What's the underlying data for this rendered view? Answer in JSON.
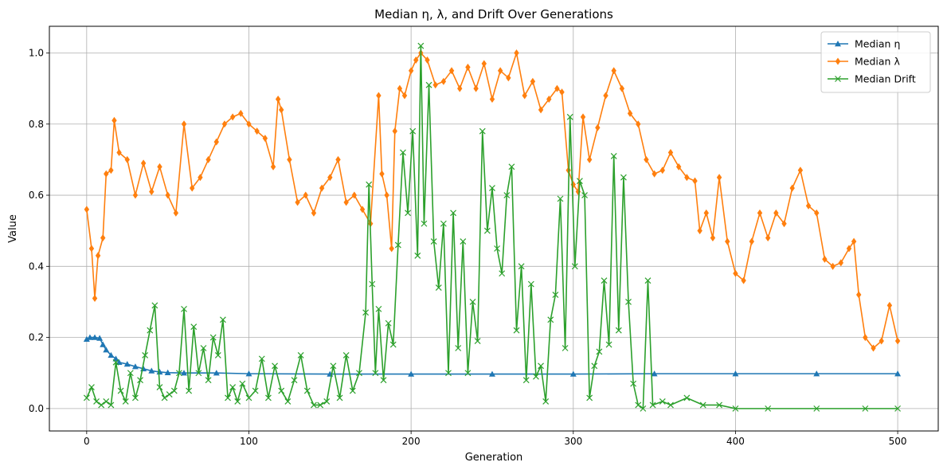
{
  "chart_data": {
    "type": "line",
    "title": "Median η, λ, and Drift Over Generations",
    "xlabel": "Generation",
    "ylabel": "Value",
    "xlim": [
      -23,
      525
    ],
    "ylim": [
      -0.063,
      1.075
    ],
    "x_ticks": [
      0,
      100,
      200,
      300,
      400,
      500
    ],
    "y_ticks": [
      0.0,
      0.2,
      0.4,
      0.6,
      0.8,
      1.0
    ],
    "x_tick_labels": [
      "0",
      "100",
      "200",
      "300",
      "400",
      "500"
    ],
    "y_tick_labels": [
      "0.0",
      "0.2",
      "0.4",
      "0.6",
      "0.8",
      "1.0"
    ],
    "grid": true,
    "legend_position": "top-right",
    "series": [
      {
        "name": "Median η",
        "color": "#1f77b4",
        "marker": "triangle",
        "x": [
          0,
          2,
          5,
          8,
          10,
          12,
          15,
          18,
          20,
          25,
          30,
          35,
          40,
          45,
          50,
          60,
          80,
          100,
          150,
          200,
          250,
          300,
          350,
          400,
          450,
          500
        ],
        "y": [
          0.195,
          0.2,
          0.2,
          0.198,
          0.18,
          0.165,
          0.15,
          0.14,
          0.13,
          0.125,
          0.118,
          0.112,
          0.106,
          0.103,
          0.101,
          0.1,
          0.1,
          0.098,
          0.097,
          0.097,
          0.097,
          0.097,
          0.098,
          0.098,
          0.098,
          0.098
        ]
      },
      {
        "name": "Median λ",
        "color": "#ff7f0e",
        "marker": "diamond",
        "x": [
          0,
          3,
          5,
          7,
          10,
          12,
          15,
          17,
          20,
          25,
          30,
          35,
          40,
          45,
          50,
          55,
          60,
          65,
          70,
          75,
          80,
          85,
          90,
          95,
          100,
          105,
          110,
          115,
          118,
          120,
          125,
          130,
          135,
          140,
          145,
          150,
          155,
          160,
          165,
          170,
          175,
          180,
          182,
          185,
          188,
          190,
          193,
          196,
          200,
          203,
          206,
          210,
          215,
          220,
          225,
          230,
          235,
          240,
          245,
          250,
          255,
          260,
          265,
          270,
          275,
          280,
          285,
          290,
          293,
          297,
          300,
          303,
          306,
          310,
          315,
          320,
          325,
          330,
          335,
          340,
          345,
          350,
          355,
          360,
          365,
          370,
          375,
          378,
          382,
          386,
          390,
          395,
          400,
          405,
          410,
          415,
          420,
          425,
          430,
          435,
          440,
          445,
          450,
          455,
          460,
          465,
          470,
          473,
          476,
          480,
          485,
          490,
          495,
          500
        ],
        "y": [
          0.56,
          0.45,
          0.31,
          0.43,
          0.48,
          0.66,
          0.67,
          0.81,
          0.72,
          0.7,
          0.6,
          0.69,
          0.61,
          0.68,
          0.6,
          0.55,
          0.8,
          0.62,
          0.65,
          0.7,
          0.75,
          0.8,
          0.82,
          0.83,
          0.8,
          0.78,
          0.76,
          0.68,
          0.87,
          0.84,
          0.7,
          0.58,
          0.6,
          0.55,
          0.62,
          0.65,
          0.7,
          0.58,
          0.6,
          0.56,
          0.52,
          0.88,
          0.66,
          0.6,
          0.45,
          0.78,
          0.9,
          0.88,
          0.95,
          0.98,
          1.0,
          0.98,
          0.91,
          0.92,
          0.95,
          0.9,
          0.96,
          0.9,
          0.97,
          0.87,
          0.95,
          0.93,
          1.0,
          0.88,
          0.92,
          0.84,
          0.87,
          0.9,
          0.89,
          0.67,
          0.63,
          0.61,
          0.82,
          0.7,
          0.79,
          0.88,
          0.95,
          0.9,
          0.83,
          0.8,
          0.7,
          0.66,
          0.67,
          0.72,
          0.68,
          0.65,
          0.64,
          0.5,
          0.55,
          0.48,
          0.65,
          0.47,
          0.38,
          0.36,
          0.47,
          0.55,
          0.48,
          0.55,
          0.52,
          0.62,
          0.67,
          0.57,
          0.55,
          0.42,
          0.4,
          0.41,
          0.45,
          0.47,
          0.32,
          0.2,
          0.17,
          0.19,
          0.29,
          0.19
        ]
      },
      {
        "name": "Median Drift",
        "color": "#2ca02c",
        "marker": "x",
        "x": [
          0,
          3,
          6,
          9,
          12,
          15,
          18,
          21,
          24,
          27,
          30,
          33,
          36,
          39,
          42,
          45,
          48,
          51,
          54,
          57,
          60,
          63,
          66,
          69,
          72,
          75,
          78,
          81,
          84,
          87,
          90,
          93,
          96,
          100,
          104,
          108,
          112,
          116,
          120,
          124,
          128,
          132,
          136,
          140,
          144,
          148,
          152,
          156,
          160,
          164,
          168,
          172,
          174,
          176,
          178,
          180,
          183,
          186,
          189,
          192,
          195,
          198,
          201,
          204,
          206,
          208,
          211,
          214,
          217,
          220,
          223,
          226,
          229,
          232,
          235,
          238,
          241,
          244,
          247,
          250,
          253,
          256,
          259,
          262,
          265,
          268,
          271,
          274,
          277,
          280,
          283,
          286,
          289,
          292,
          295,
          298,
          301,
          304,
          307,
          310,
          313,
          316,
          319,
          322,
          325,
          328,
          331,
          334,
          337,
          340,
          343,
          346,
          349,
          355,
          360,
          370,
          380,
          390,
          400,
          420,
          450,
          480,
          500
        ],
        "y": [
          0.03,
          0.06,
          0.02,
          0.01,
          0.02,
          0.01,
          0.13,
          0.05,
          0.02,
          0.1,
          0.03,
          0.08,
          0.15,
          0.22,
          0.29,
          0.06,
          0.03,
          0.04,
          0.05,
          0.1,
          0.28,
          0.05,
          0.23,
          0.1,
          0.17,
          0.08,
          0.2,
          0.15,
          0.25,
          0.03,
          0.06,
          0.02,
          0.07,
          0.03,
          0.05,
          0.14,
          0.03,
          0.12,
          0.05,
          0.02,
          0.08,
          0.15,
          0.05,
          0.01,
          0.01,
          0.02,
          0.12,
          0.03,
          0.15,
          0.05,
          0.1,
          0.27,
          0.63,
          0.35,
          0.1,
          0.28,
          0.08,
          0.24,
          0.18,
          0.46,
          0.72,
          0.55,
          0.78,
          0.43,
          1.02,
          0.52,
          0.91,
          0.47,
          0.34,
          0.52,
          0.1,
          0.55,
          0.17,
          0.47,
          0.1,
          0.3,
          0.19,
          0.78,
          0.5,
          0.62,
          0.45,
          0.38,
          0.6,
          0.68,
          0.22,
          0.4,
          0.08,
          0.35,
          0.09,
          0.12,
          0.02,
          0.25,
          0.32,
          0.59,
          0.17,
          0.82,
          0.4,
          0.64,
          0.6,
          0.03,
          0.12,
          0.16,
          0.36,
          0.18,
          0.71,
          0.22,
          0.65,
          0.3,
          0.07,
          0.01,
          0.0,
          0.36,
          0.01,
          0.02,
          0.01,
          0.03,
          0.01,
          0.01,
          0.0,
          0.0,
          0.0,
          0.0,
          0.0
        ]
      }
    ]
  }
}
